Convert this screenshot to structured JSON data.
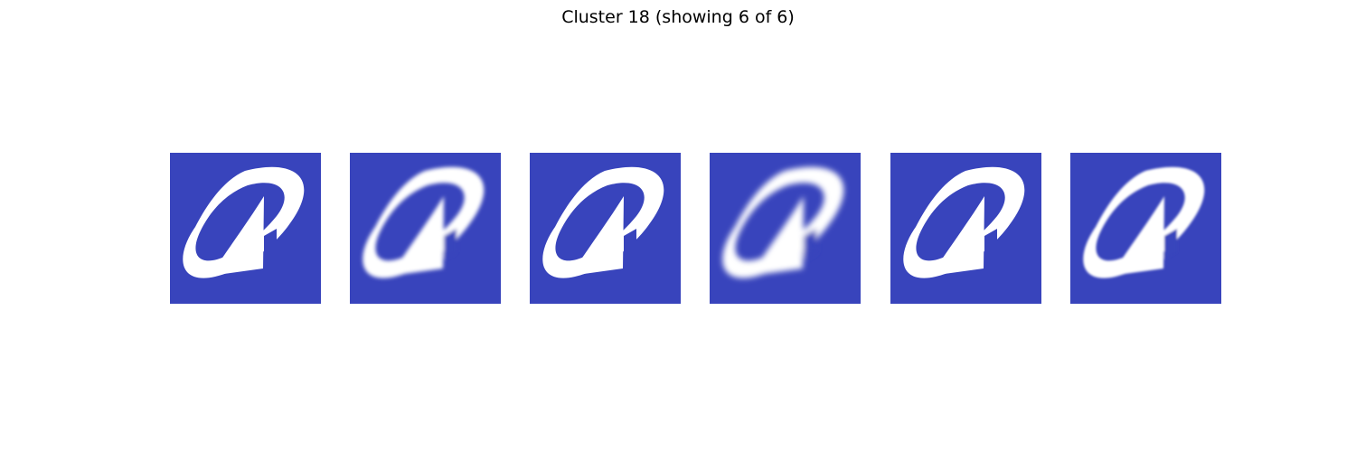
{
  "figure": {
    "title": "Cluster 18 (showing 6 of 6)"
  },
  "colors": {
    "tile_background": "#3844bc",
    "logo_foreground": "#ffffff"
  },
  "tiles": [
    {
      "icon": "logo-icon",
      "blur": 0
    },
    {
      "icon": "logo-icon",
      "blur": 2.2
    },
    {
      "icon": "logo-icon",
      "blur": 0
    },
    {
      "icon": "logo-icon",
      "blur": 3.2
    },
    {
      "icon": "logo-icon",
      "blur": 0
    },
    {
      "icon": "logo-icon",
      "blur": 1.4
    }
  ]
}
